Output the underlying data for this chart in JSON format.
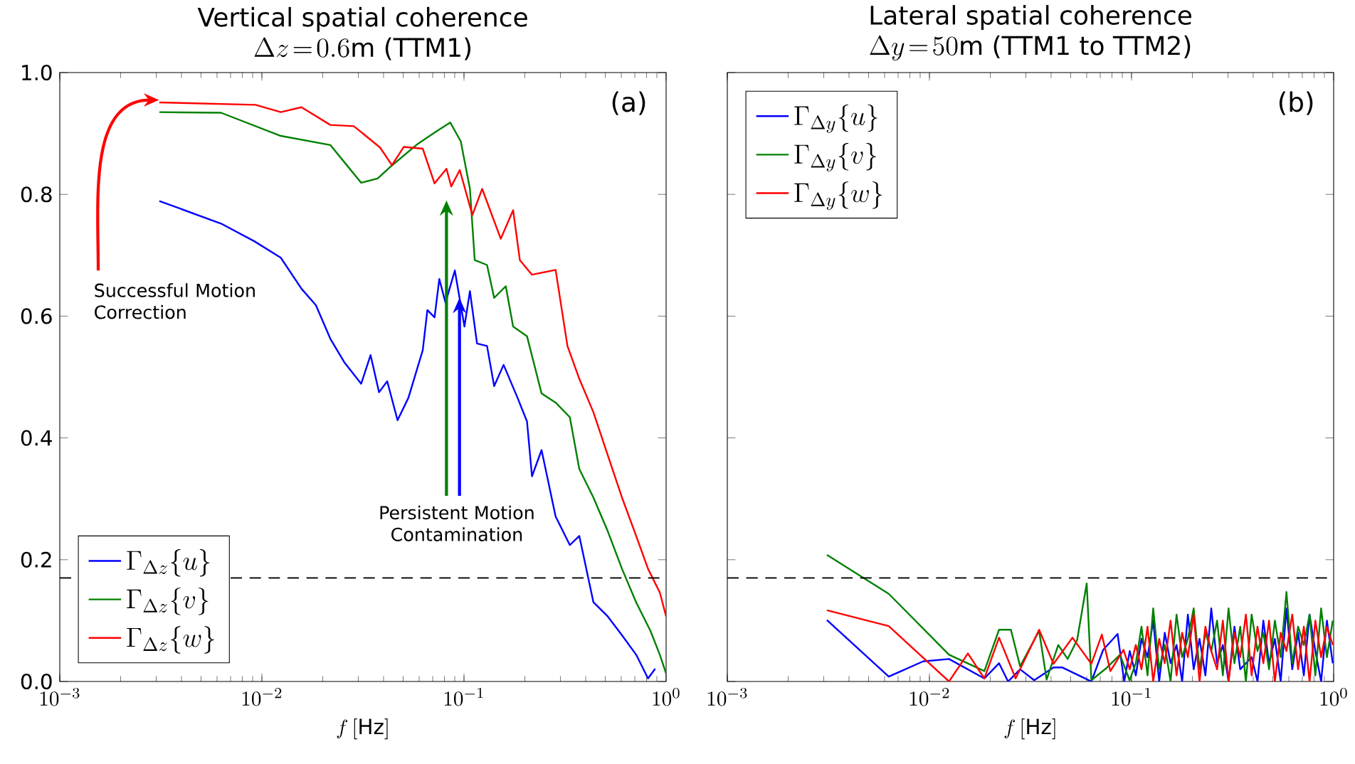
{
  "chart_data": [
    {
      "type": "line",
      "title": "Vertical spatial coherence",
      "subtitle": "\\Delta z\\!=\\!0.6\\mathrm{m}\\ \\mbox{(TTM1)}",
      "xlabel": "f\\,[\\mathrm{Hz}]",
      "log": "x",
      "xlim": [
        0.001,
        1
      ],
      "ylim": [
        0,
        1
      ],
      "xticks": [
        {
          "value": 0.001,
          "label": "10^{-3}"
        },
        {
          "value": 0.01,
          "label": "10^{-2}"
        },
        {
          "value": 0.1,
          "label": "10^{-1}"
        },
        {
          "value": 1,
          "label": "10^{0}"
        }
      ],
      "yticks": [
        {
          "value": 0,
          "label": "0.0"
        },
        {
          "value": 0.2,
          "label": "0.2"
        },
        {
          "value": 0.4,
          "label": "0.4"
        },
        {
          "value": 0.6,
          "label": "0.6"
        },
        {
          "value": 0.8,
          "label": "0.8"
        },
        {
          "value": 1,
          "label": "1.0"
        }
      ],
      "legend": "bottom left",
      "ref_lines": [
        {
          "axis": "y",
          "value": 0.17,
          "line_style": "dashed",
          "color": "#000000"
        }
      ],
      "annotations": [
        "(a)",
        {
          "text": "Successful Motion Correction",
          "x": 0.0031,
          "y": 0.955
        },
        {
          "text": "Persistent Motion Contamination",
          "x": 0.095,
          "y": 0.63
        }
      ],
      "series": [
        {
          "name": "\\Gamma_{\\Delta z}\\{u\\}",
          "color": "#0000ff",
          "x": [
            0.00311,
            0.00628,
            0.00917,
            0.0124,
            0.0157,
            0.0185,
            0.0218,
            0.0256,
            0.031,
            0.0345,
            0.038,
            0.0417,
            0.0469,
            0.0531,
            0.0625,
            0.0659,
            0.0715,
            0.0755,
            0.081,
            0.0901,
            0.1005,
            0.107,
            0.116,
            0.13,
            0.141,
            0.157,
            0.184,
            0.205,
            0.217,
            0.242,
            0.284,
            0.334,
            0.372,
            0.437,
            0.514,
            0.605,
            0.711,
            0.814,
            0.883
          ],
          "values": [
            0.789,
            0.752,
            0.723,
            0.696,
            0.645,
            0.618,
            0.563,
            0.524,
            0.489,
            0.536,
            0.475,
            0.493,
            0.429,
            0.466,
            0.544,
            0.61,
            0.598,
            0.661,
            0.622,
            0.675,
            0.583,
            0.641,
            0.555,
            0.551,
            0.485,
            0.52,
            0.466,
            0.427,
            0.337,
            0.38,
            0.271,
            0.224,
            0.239,
            0.13,
            0.107,
            0.076,
            0.044,
            0.005,
            0.021
          ]
        },
        {
          "name": "\\Gamma_{\\Delta z}\\{v\\}",
          "color": "#008000",
          "x": [
            0.00311,
            0.00628,
            0.0124,
            0.0218,
            0.0263,
            0.031,
            0.0374,
            0.0428,
            0.0591,
            0.0734,
            0.0855,
            0.0964,
            0.107,
            0.113,
            0.13,
            0.141,
            0.161,
            0.175,
            0.205,
            0.242,
            0.284,
            0.334,
            0.372,
            0.437,
            0.514,
            0.605,
            0.711,
            0.837,
            0.931,
            1.0
          ],
          "values": [
            0.935,
            0.934,
            0.896,
            0.881,
            0.848,
            0.819,
            0.826,
            0.844,
            0.883,
            0.904,
            0.918,
            0.887,
            0.809,
            0.692,
            0.684,
            0.63,
            0.649,
            0.583,
            0.567,
            0.473,
            0.458,
            0.434,
            0.349,
            0.302,
            0.247,
            0.185,
            0.13,
            0.083,
            0.044,
            0.013
          ]
        },
        {
          "name": "\\Gamma_{\\Delta z}\\{w\\}",
          "color": "#ff0000",
          "x": [
            0.00311,
            0.0093,
            0.0124,
            0.0157,
            0.0218,
            0.0285,
            0.0384,
            0.044,
            0.0504,
            0.0625,
            0.0715,
            0.0819,
            0.0865,
            0.0953,
            0.11,
            0.123,
            0.152,
            0.175,
            0.189,
            0.217,
            0.284,
            0.325,
            0.372,
            0.437,
            0.514,
            0.605,
            0.711,
            0.814,
            0.931,
            1.0
          ],
          "values": [
            0.951,
            0.947,
            0.935,
            0.943,
            0.914,
            0.912,
            0.877,
            0.848,
            0.878,
            0.875,
            0.818,
            0.842,
            0.813,
            0.84,
            0.766,
            0.809,
            0.727,
            0.774,
            0.692,
            0.668,
            0.676,
            0.551,
            0.497,
            0.442,
            0.372,
            0.302,
            0.239,
            0.185,
            0.146,
            0.107
          ]
        }
      ]
    },
    {
      "type": "line",
      "title": "Lateral spatial coherence",
      "subtitle": "\\Delta y\\!=\\!50\\mathrm{m}\\ \\mbox{(TTM1 to TTM2)}",
      "xlabel": "f\\,[\\mathrm{Hz}]",
      "log": "x",
      "xlim": [
        0.001,
        1
      ],
      "ylim": [
        0,
        1
      ],
      "tick_labels": "x",
      "xticks": [
        {
          "value": 0.001,
          "label": "10^{-3}"
        },
        {
          "value": 0.01,
          "label": "10^{-2}"
        },
        {
          "value": 0.1,
          "label": "10^{-1}"
        },
        {
          "value": 1,
          "label": "10^{0}"
        }
      ],
      "yticks": [
        {
          "value": 0,
          "label": null
        },
        {
          "value": 0.2,
          "label": null
        },
        {
          "value": 0.4,
          "label": null
        },
        {
          "value": 0.6,
          "label": null
        },
        {
          "value": 0.8,
          "label": null
        },
        {
          "value": 1,
          "label": null
        }
      ],
      "legend": "top left",
      "ref_lines": [
        {
          "axis": "y",
          "value": 0.17,
          "line_style": "dashed",
          "color": "#000000"
        }
      ],
      "annotations": [
        "(b)"
      ],
      "series": [
        {
          "name": "\\Gamma_{\\Delta y}\\{u\\}",
          "color": "#0000ff",
          "x": [
            0.00311,
            0.00629,
            0.0093,
            0.0125,
            0.0187,
            0.0221,
            0.0245,
            0.0281,
            0.033,
            0.0411,
            0.0455,
            0.051,
            0.0633,
            0.0724,
            0.0853,
            0.092,
            0.098,
            0.105,
            0.112,
            0.12,
            0.128,
            0.137,
            0.146,
            0.156,
            0.167,
            0.178,
            0.19,
            0.203,
            0.217,
            0.232,
            0.248,
            0.265,
            0.283,
            0.302,
            0.323,
            0.345,
            0.368,
            0.393,
            0.42,
            0.449,
            0.479,
            0.512,
            0.547,
            0.584,
            0.624,
            0.667,
            0.712,
            0.76,
            0.812,
            0.867,
            0.926,
            0.99
          ],
          "values": [
            0.101,
            0.008,
            0.033,
            0.037,
            0.005,
            0.03,
            0.0,
            0.02,
            0.002,
            0.023,
            0.023,
            0.015,
            0.0,
            0.052,
            0.078,
            0.0,
            0.05,
            0.01,
            0.07,
            0.04,
            0.1,
            0.0,
            0.08,
            0.03,
            0.06,
            0.0,
            0.11,
            0.02,
            0.07,
            0.01,
            0.12,
            0.03,
            0.06,
            0.0,
            0.09,
            0.02,
            null,
            0.04,
            0.0,
            0.1,
            0.03,
            0.07,
            0.0,
            0.12,
            0.02,
            0.08,
            0.01,
            0.11,
            0.05,
            0.0,
            0.1,
            0.03
          ]
        },
        {
          "name": "\\Gamma_{\\Delta y}\\{v\\}",
          "color": "#008000",
          "x": [
            0.00311,
            0.00629,
            0.0125,
            0.0187,
            0.0221,
            0.0253,
            0.0281,
            0.0349,
            0.038,
            0.0434,
            0.0483,
            0.0538,
            0.06,
            0.0633,
            0.0745,
            0.0877,
            0.0978,
            0.105,
            0.112,
            0.12,
            0.128,
            0.137,
            0.146,
            0.156,
            0.167,
            0.178,
            0.19,
            0.203,
            0.217,
            0.232,
            0.248,
            0.265,
            0.283,
            0.302,
            0.323,
            0.345,
            0.368,
            0.393,
            0.42,
            0.449,
            0.479,
            0.512,
            0.547,
            0.584,
            0.624,
            0.667,
            0.712,
            0.76,
            0.812,
            0.867,
            0.926,
            0.99
          ],
          "values": [
            0.208,
            0.144,
            0.044,
            0.017,
            0.085,
            0.085,
            0.025,
            0.083,
            0.003,
            0.06,
            0.037,
            0.068,
            0.161,
            0.002,
            0.021,
            0.044,
            0.002,
            0.03,
            0.09,
            0.01,
            0.12,
            0.02,
            0.06,
            0.0,
            0.11,
            0.04,
            0.07,
            0.12,
            0.02,
            0.08,
            0.05,
            0.1,
            0.01,
            0.12,
            0.03,
            0.09,
            0.0,
            0.11,
            0.05,
            0.08,
            0.02,
            0.1,
            0.04,
            0.147,
            0.03,
            0.09,
            0.06,
            0.11,
            0.01,
            0.12,
            0.04,
            0.1
          ]
        },
        {
          "name": "\\Gamma_{\\Delta y}\\{w\\}",
          "color": "#ff0000",
          "x": [
            0.00311,
            0.00629,
            0.0125,
            0.0155,
            0.0187,
            0.0221,
            0.0267,
            0.0349,
            0.0411,
            0.051,
            0.0633,
            0.0713,
            0.0786,
            0.0913,
            0.098,
            0.105,
            0.112,
            0.12,
            0.128,
            0.137,
            0.146,
            0.156,
            0.167,
            0.178,
            0.19,
            0.203,
            0.217,
            0.232,
            0.248,
            0.265,
            0.283,
            0.302,
            0.323,
            0.345,
            0.368,
            0.393,
            0.42,
            0.449,
            0.479,
            0.512,
            0.547,
            0.584,
            0.624,
            0.667,
            0.712,
            0.76,
            0.812,
            0.867,
            0.926,
            0.99
          ],
          "values": [
            0.117,
            0.091,
            0.0,
            0.046,
            0.005,
            0.072,
            0.005,
            0.085,
            0.029,
            0.072,
            0.029,
            0.077,
            0.017,
            0.052,
            0.02,
            0.06,
            0.02,
            0.09,
            0.0,
            0.07,
            0.03,
            0.1,
            0.01,
            0.08,
            0.04,
            0.11,
            0.0,
            0.09,
            0.05,
            0.02,
            0.1,
            0.0,
            0.08,
            0.04,
            0.11,
            0.01,
            0.09,
            0.03,
            0.1,
            0.0,
            0.08,
            0.05,
            0.11,
            0.02,
            0.09,
            0.0,
            0.1,
            0.04,
            0.09,
            0.06
          ]
        }
      ]
    }
  ]
}
